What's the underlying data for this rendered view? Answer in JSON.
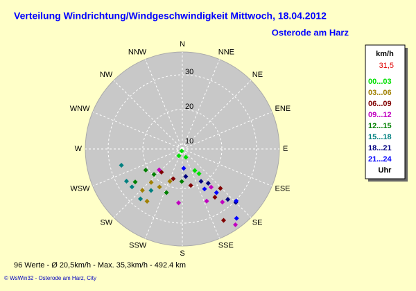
{
  "chart_data": {
    "type": "polar",
    "title": "Verteilung Windrichtung/Windgeschwindigkeit  Mittwoch, 18.04.2012",
    "subtitle": "Osterode am Harz",
    "directions": [
      "N",
      "NNE",
      "NE",
      "ENE",
      "E",
      "ESE",
      "SE",
      "SSE",
      "S",
      "SSW",
      "SW",
      "WSW",
      "W",
      "WNW",
      "NW",
      "NNW"
    ],
    "rlim": [
      8.6,
      36.6
    ],
    "rticks": [
      10,
      20,
      30
    ],
    "legend_title": "km/h",
    "legend_value": "31,5",
    "legend_unit": "Uhr",
    "series": [
      {
        "name": "00...03",
        "color": "#00e000",
        "x": [
          198,
          207,
          157,
          150,
          146
        ],
        "values": [
          9.2,
          10.8,
          11.2,
          15.8,
          17.2
        ]
      },
      {
        "name": "03...06",
        "color": "#a08000",
        "x": [
          223,
          224,
          211,
          201,
          214
        ],
        "values": [
          21.8,
          25.2,
          21.4,
          18.6,
          26.8
        ]
      },
      {
        "name": "06...09",
        "color": "#800000",
        "x": [
          197,
          167,
          136,
          146,
          150,
          222
        ],
        "values": [
          17.6,
          19.4,
          24.4,
          25.4,
          32.4,
          17.6
        ]
      },
      {
        "name": "09...12",
        "color": "#c000c0",
        "x": [
          184,
          155,
          143,
          143,
          228,
          145
        ],
        "values": [
          24.2,
          25.2,
          27.8,
          22.4,
          17.6,
          35.3
        ]
      },
      {
        "name": "12...15",
        "color": "#008000",
        "x": [
          240,
          228,
          200,
          235,
          181
        ],
        "values": [
          20.8,
          19.6,
          22,
          25.2,
          18
        ]
      },
      {
        "name": "15...18",
        "color": "#008080",
        "x": [
          255,
          240,
          220,
          233,
          217
        ],
        "values": [
          26.8,
          27.2,
          27.4,
          26.8,
          23.6
        ]
      },
      {
        "name": "18...21",
        "color": "#000080",
        "x": [
          143,
          138,
          135,
          173,
          150
        ],
        "values": [
          21,
          28.2,
          30.4,
          16.6,
          19.4
        ]
      },
      {
        "name": "21...24",
        "color": "#0000ff",
        "x": [
          134,
          142,
          142,
          151,
          176
        ],
        "values": [
          30.2,
          34,
          24.6,
          21.8,
          14.2
        ]
      }
    ],
    "footer": "96 Werte   -   Ø 20,5km/h   -   Max. 35,3km/h   -   492.4 km",
    "credit": "© WsWin32  -  Osterode am Harz, City"
  }
}
